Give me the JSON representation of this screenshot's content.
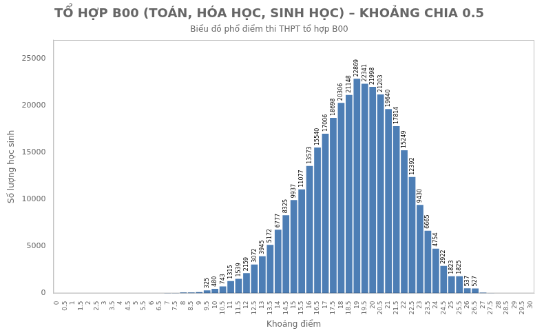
{
  "chart_data": {
    "type": "bar",
    "title": "TỔ HỢP B00 (TOÁN, HÓA HỌC, SINH HỌC) – KHOẢNG CHIA 0.5",
    "subtitle": "Biểu đồ phổ điểm thi THPT tổ hợp B00",
    "xlabel": "Khoảng điểm",
    "ylabel": "Số lượng học sinh",
    "color": "#4d7eb5",
    "categories": [
      "0",
      "0.5",
      "1",
      "1.5",
      "2",
      "2.5",
      "3",
      "3.5",
      "4",
      "4.5",
      "5",
      "5.5",
      "6",
      "6.5",
      "7",
      "7.5",
      "8",
      "8.5",
      "9",
      "9.5",
      "10",
      "10.5",
      "11",
      "11.5",
      "12",
      "12.5",
      "13",
      "13.5",
      "14",
      "14.5",
      "15",
      "15.5",
      "16",
      "16.5",
      "17",
      "17.5",
      "18",
      "18.5",
      "19",
      "19.5",
      "20",
      "20.5",
      "21",
      "21.5",
      "22",
      "22.5",
      "23",
      "23.5",
      "24",
      "24.5",
      "25",
      "25.5",
      "26",
      "26.5",
      "27",
      "27.5",
      "28",
      "28.5",
      "29",
      "29.5",
      "30"
    ],
    "values": [
      2,
      0,
      0,
      0,
      0,
      0,
      2,
      0,
      0,
      2,
      0,
      1,
      3,
      4,
      40,
      48,
      88,
      101,
      128,
      325,
      480,
      743,
      1315,
      1539,
      2159,
      3072,
      3945,
      5172,
      6777,
      8325,
      9937,
      11077,
      13573,
      15540,
      17006,
      18698,
      20306,
      21148,
      22869,
      22341,
      21998,
      21203,
      19640,
      17814,
      15249,
      12392,
      9430,
      6665,
      4754,
      2922,
      1823,
      1825,
      537,
      527,
      75,
      23,
      7,
      1,
      0,
      0,
      0
    ],
    "data_labels": true,
    "value_labels": [
      null,
      null,
      null,
      null,
      null,
      null,
      null,
      null,
      null,
      null,
      null,
      null,
      null,
      null,
      null,
      null,
      null,
      null,
      null,
      "325",
      "480",
      "743",
      "1315",
      "1539",
      "2159",
      "3072",
      "3945",
      "5172",
      "6777",
      "8325",
      "9937",
      "11077",
      "13573",
      "15540",
      "17006",
      "18698",
      "20306",
      "21148",
      "22869",
      "22341",
      "21998",
      "21203",
      "19640",
      "17814",
      "15249",
      "12392",
      "9430",
      "6665",
      "4754",
      "2922",
      "1823",
      "1825",
      "537",
      "527",
      null,
      null,
      null,
      null,
      null,
      null,
      null
    ],
    "ylim": [
      0,
      27000
    ],
    "yticks": [
      0,
      5000,
      10000,
      15000,
      20000,
      25000
    ],
    "grid": false
  }
}
